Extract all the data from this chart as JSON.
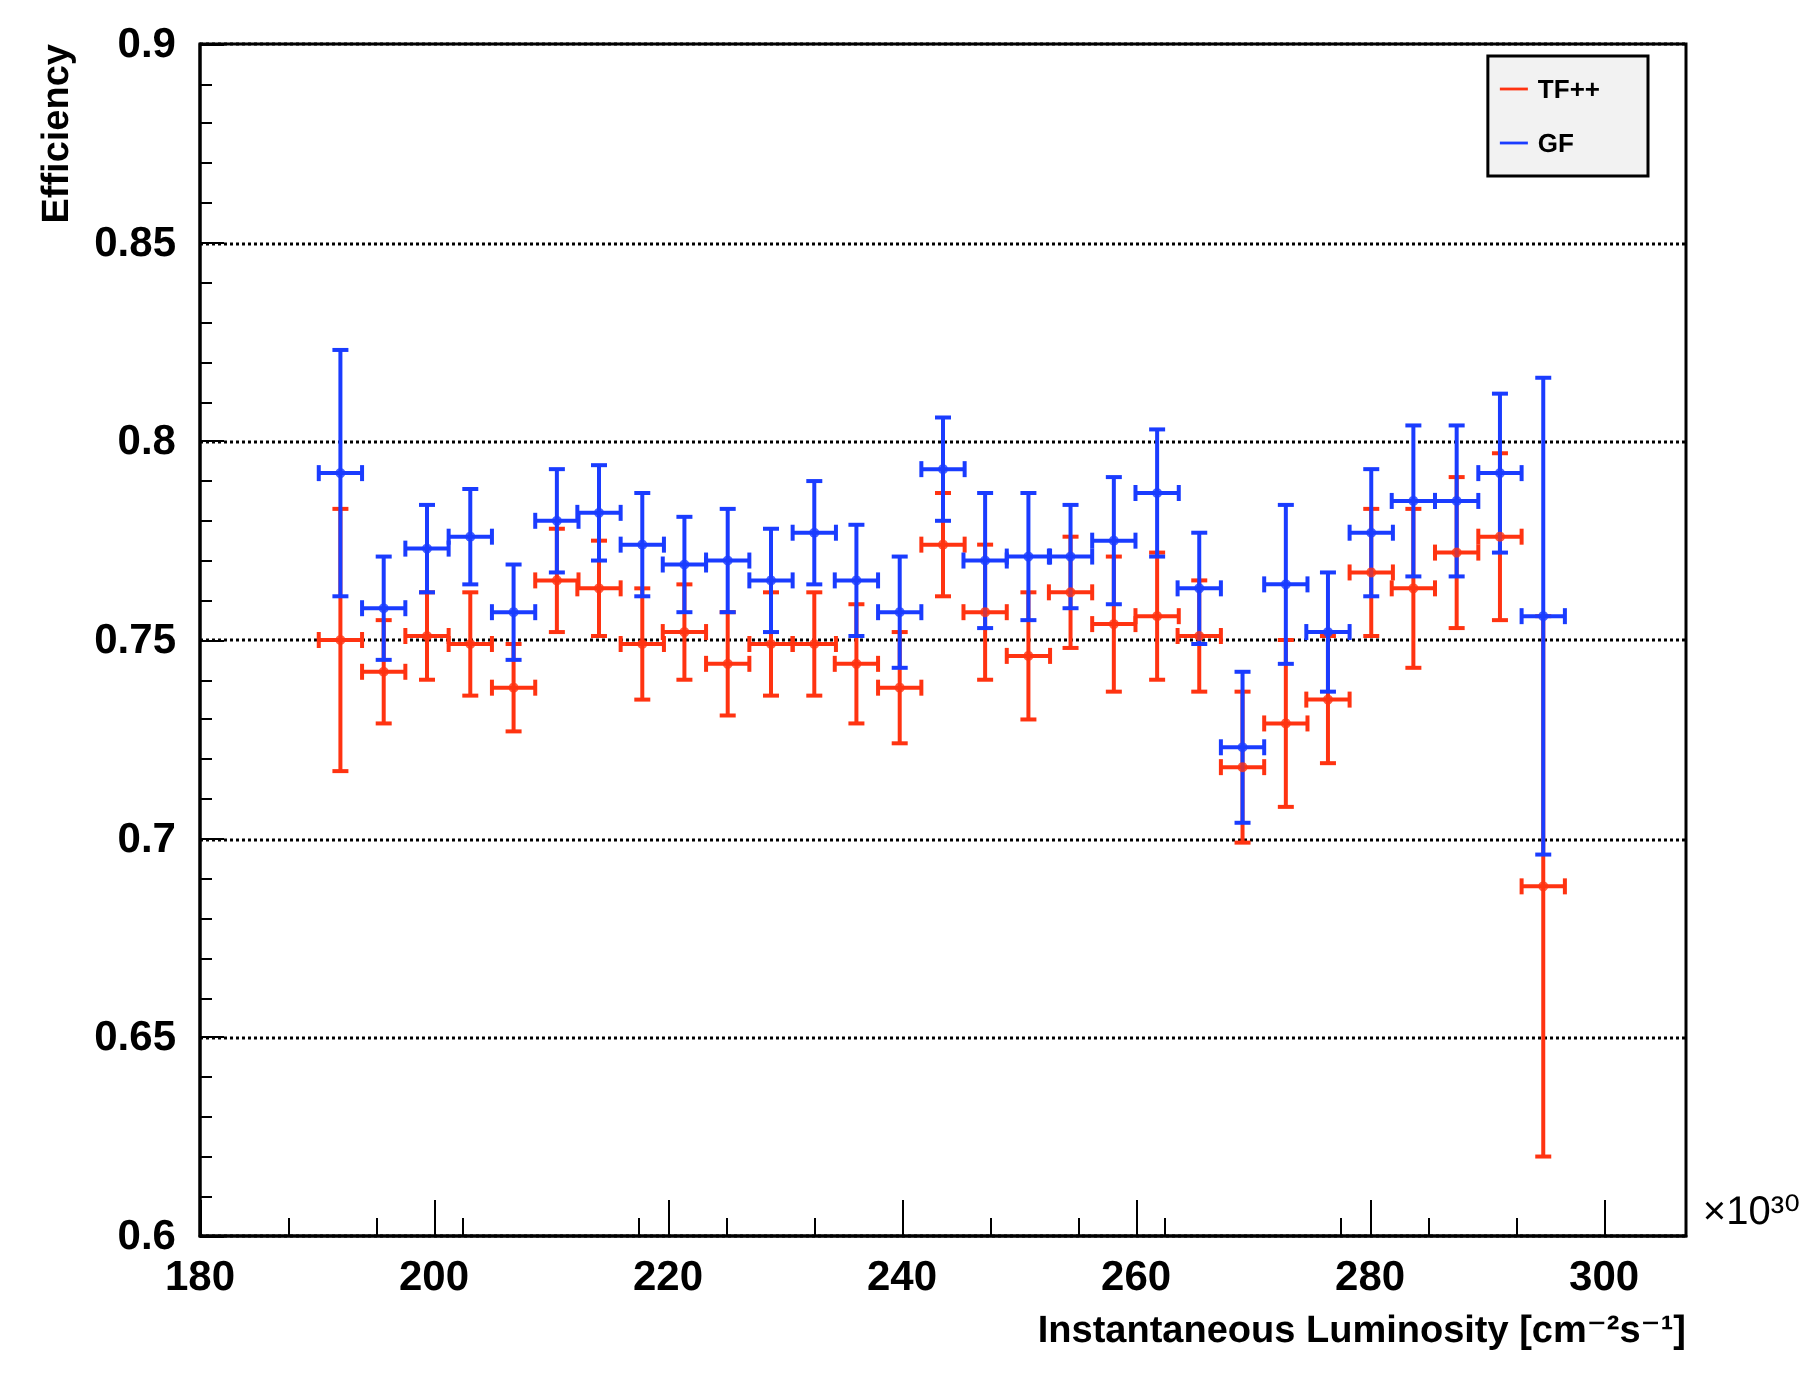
{
  "chart_data": {
    "type": "scatter",
    "xlabel": "Instantaneous Luminosity [cm⁻²s⁻¹]",
    "ylabel": "Efficiency",
    "annotations": [
      "×10³⁰"
    ],
    "xlim": [
      180,
      307
    ],
    "xticks": [
      180,
      200,
      220,
      240,
      260,
      280,
      300
    ],
    "ylim": [
      0.6,
      0.9
    ],
    "yticks": [
      0.6,
      0.65,
      0.7,
      0.75,
      0.8,
      0.85,
      0.9
    ],
    "grid": "y",
    "legend": "top right",
    "series": [
      {
        "name": "TF++",
        "color": "#ff3311",
        "x": [
          192.0,
          195.7,
          199.4,
          203.1,
          206.8,
          210.5,
          214.1,
          217.8,
          221.4,
          225.1,
          228.8,
          232.5,
          236.1,
          239.8,
          243.5,
          247.1,
          250.8,
          254.4,
          258.1,
          261.8,
          265.4,
          269.1,
          272.8,
          276.4,
          280.1,
          283.7,
          287.4,
          291.1,
          294.8
        ],
        "values": [
          0.75,
          0.742,
          0.751,
          0.749,
          0.738,
          0.765,
          0.763,
          0.749,
          0.752,
          0.744,
          0.749,
          0.749,
          0.744,
          0.738,
          0.774,
          0.757,
          0.746,
          0.762,
          0.754,
          0.756,
          0.751,
          0.718,
          0.729,
          0.735,
          0.767,
          0.763,
          0.772,
          0.776,
          0.688
        ],
        "errors": [
          0.033,
          0.013,
          0.011,
          0.013,
          0.011,
          0.013,
          0.012,
          0.014,
          0.012,
          0.013,
          0.013,
          0.013,
          0.015,
          0.014,
          0.013,
          0.017,
          0.016,
          0.014,
          0.017,
          0.016,
          0.014,
          0.019,
          0.021,
          0.016,
          0.016,
          0.02,
          0.019,
          0.021,
          0.068
        ],
        "xerrors": [
          1.85,
          1.85,
          1.85,
          1.85,
          1.85,
          1.85,
          1.85,
          1.85,
          1.85,
          1.85,
          1.85,
          1.85,
          1.85,
          1.85,
          1.85,
          1.85,
          1.85,
          1.85,
          1.85,
          1.85,
          1.85,
          1.85,
          1.85,
          1.85,
          1.85,
          1.85,
          1.85,
          1.85,
          1.85
        ]
      },
      {
        "name": "GF",
        "color": "#1a3cff",
        "x": [
          192.0,
          195.7,
          199.4,
          203.1,
          206.8,
          210.5,
          214.1,
          217.8,
          221.4,
          225.1,
          228.8,
          232.5,
          236.1,
          239.8,
          243.5,
          247.1,
          250.8,
          254.4,
          258.1,
          261.8,
          265.4,
          269.1,
          272.8,
          276.4,
          280.1,
          283.7,
          287.4,
          291.1,
          294.8
        ],
        "values": [
          0.792,
          0.758,
          0.773,
          0.776,
          0.757,
          0.78,
          0.782,
          0.774,
          0.769,
          0.77,
          0.765,
          0.777,
          0.765,
          0.757,
          0.793,
          0.77,
          0.771,
          0.771,
          0.775,
          0.787,
          0.763,
          0.723,
          0.764,
          0.752,
          0.777,
          0.785,
          0.785,
          0.792,
          0.756
        ],
        "errors": [
          0.031,
          0.013,
          0.011,
          0.012,
          0.012,
          0.013,
          0.012,
          0.013,
          0.012,
          0.013,
          0.013,
          0.013,
          0.014,
          0.014,
          0.013,
          0.017,
          0.016,
          0.013,
          0.016,
          0.016,
          0.014,
          0.019,
          0.02,
          0.015,
          0.016,
          0.019,
          0.019,
          0.02,
          0.06
        ],
        "xerrors": [
          1.85,
          1.85,
          1.85,
          1.85,
          1.85,
          1.85,
          1.85,
          1.85,
          1.85,
          1.85,
          1.85,
          1.85,
          1.85,
          1.85,
          1.85,
          1.85,
          1.85,
          1.85,
          1.85,
          1.85,
          1.85,
          1.85,
          1.85,
          1.85,
          1.85,
          1.85,
          1.85,
          1.85,
          1.85
        ]
      }
    ]
  }
}
